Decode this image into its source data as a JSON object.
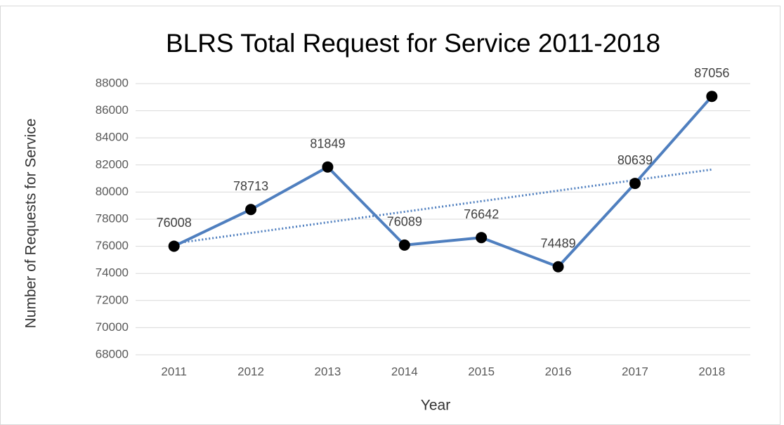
{
  "chart_data": {
    "type": "line",
    "title": "BLRS Total Request for Service 2011-2018",
    "x_label": "Year",
    "y_label": "Number of Requests for Service",
    "categories": [
      "2011",
      "2012",
      "2013",
      "2014",
      "2015",
      "2016",
      "2017",
      "2018"
    ],
    "values": [
      76008,
      78713,
      81849,
      76089,
      76642,
      74489,
      80639,
      87056
    ],
    "color": "#4f7fbf",
    "marker_color": "#000000",
    "ylim": [
      68000,
      88000
    ],
    "yticks": [
      68000,
      70000,
      72000,
      74000,
      76000,
      78000,
      80000,
      82000,
      84000,
      86000,
      88000
    ],
    "grid": true,
    "data_labels": true,
    "trendline": "linear"
  }
}
